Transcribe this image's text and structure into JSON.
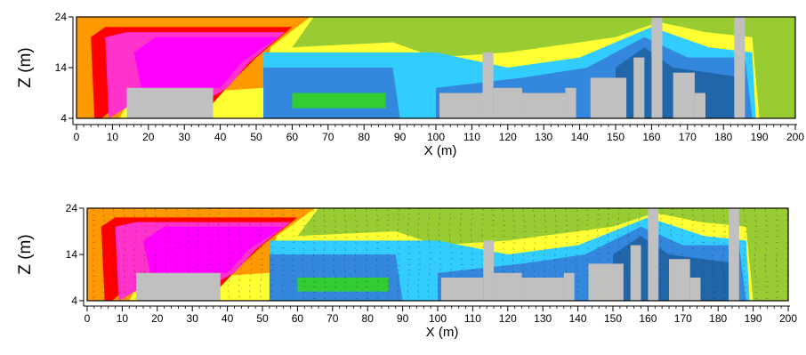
{
  "chart_data": [
    {
      "type": "heatmap",
      "title": "",
      "xlabel": "X (m)",
      "ylabel": "Z (m)",
      "xlim": [
        0,
        200
      ],
      "ylim": [
        4,
        24
      ],
      "x_ticks": [
        0,
        10,
        20,
        30,
        40,
        50,
        60,
        70,
        80,
        90,
        100,
        110,
        120,
        130,
        140,
        150,
        160,
        170,
        180,
        190,
        200
      ],
      "y_ticks": [
        4,
        14,
        24
      ],
      "grid": false,
      "legend": "none",
      "palette": [
        "#ff0000",
        "#ff33cc",
        "#ff00ff",
        "#ff9900",
        "#ffff33",
        "#99cc33",
        "#33cc33",
        "#33ccff",
        "#3388dd",
        "#2266aa",
        "#c0c0c0"
      ],
      "contour_bands": [
        {
          "color": "#ff9900",
          "polygon": [
            [
              0,
              24
            ],
            [
              65,
              24
            ],
            [
              54,
              18
            ],
            [
              52,
              10
            ],
            [
              30,
              9
            ],
            [
              14,
              7
            ],
            [
              12,
              4
            ],
            [
              0,
              4
            ]
          ]
        },
        {
          "color": "#ff0000",
          "polygon": [
            [
              8,
              22
            ],
            [
              60,
              22
            ],
            [
              50,
              16
            ],
            [
              43,
              11
            ],
            [
              38,
              7
            ],
            [
              12,
              7
            ],
            [
              7,
              4
            ],
            [
              5,
              4
            ],
            [
              4,
              20
            ]
          ]
        },
        {
          "color": "#ff33cc",
          "polygon": [
            [
              14,
              21
            ],
            [
              58,
              21
            ],
            [
              48,
              15
            ],
            [
              42,
              10
            ],
            [
              37,
              8
            ],
            [
              16,
              7
            ],
            [
              9,
              4
            ],
            [
              8,
              20
            ]
          ]
        },
        {
          "color": "#ff00ff",
          "polygon": [
            [
              22,
              20
            ],
            [
              56,
              20
            ],
            [
              46,
              15
            ],
            [
              40,
              10
            ],
            [
              18,
              10
            ],
            [
              16,
              17
            ]
          ]
        },
        {
          "color": "#99cc33",
          "polygon": [
            [
              66,
              24
            ],
            [
              200,
              24
            ],
            [
              200,
              4
            ],
            [
              190,
              4
            ],
            [
              188,
              20
            ],
            [
              175,
              21
            ],
            [
              162,
              23
            ],
            [
              150,
              20
            ],
            [
              120,
              17
            ],
            [
              100,
              16
            ],
            [
              88,
              19
            ],
            [
              60,
              18
            ]
          ]
        },
        {
          "color": "#33ccff",
          "polygon": [
            [
              52,
              17
            ],
            [
              100,
              17
            ],
            [
              120,
              14
            ],
            [
              140,
              16
            ],
            [
              160,
              22
            ],
            [
              176,
              18
            ],
            [
              188,
              17
            ],
            [
              189,
              4
            ],
            [
              52,
              4
            ]
          ]
        },
        {
          "color": "#3388dd",
          "polygon": [
            [
              52,
              14
            ],
            [
              88,
              14
            ],
            [
              90,
              4
            ],
            [
              52,
              4
            ]
          ]
        },
        {
          "color": "#3388dd",
          "polygon": [
            [
              100,
              10
            ],
            [
              124,
              12
            ],
            [
              142,
              14
            ],
            [
              158,
              20
            ],
            [
              170,
              16
            ],
            [
              186,
              16
            ],
            [
              188,
              4
            ],
            [
              100,
              4
            ]
          ]
        },
        {
          "color": "#2266aa",
          "polygon": [
            [
              150,
              14
            ],
            [
              158,
              18
            ],
            [
              166,
              14
            ],
            [
              186,
              12
            ],
            [
              186,
              4
            ],
            [
              150,
              4
            ]
          ]
        },
        {
          "color": "#33cc33",
          "polygon": [
            [
              60,
              6
            ],
            [
              86,
              6
            ],
            [
              86,
              9
            ],
            [
              60,
              9
            ]
          ]
        }
      ],
      "obstacles": [
        {
          "x": [
            14,
            38
          ],
          "z": [
            4,
            10
          ]
        },
        {
          "x": [
            101,
            113
          ],
          "z": [
            4,
            9
          ]
        },
        {
          "x": [
            113,
            116
          ],
          "z": [
            4,
            17
          ]
        },
        {
          "x": [
            116,
            124
          ],
          "z": [
            4,
            10
          ]
        },
        {
          "x": [
            124,
            136
          ],
          "z": [
            4,
            9
          ]
        },
        {
          "x": [
            136,
            139
          ],
          "z": [
            4,
            10
          ]
        },
        {
          "x": [
            143,
            153
          ],
          "z": [
            4,
            12
          ]
        },
        {
          "x": [
            155,
            158
          ],
          "z": [
            4,
            16
          ]
        },
        {
          "x": [
            160,
            163
          ],
          "z": [
            4,
            24
          ]
        },
        {
          "x": [
            166,
            172
          ],
          "z": [
            4,
            13
          ]
        },
        {
          "x": [
            172,
            175
          ],
          "z": [
            4,
            9
          ]
        },
        {
          "x": [
            183,
            186
          ],
          "z": [
            4,
            24
          ]
        }
      ]
    },
    {
      "type": "heatmap",
      "title": "",
      "xlabel": "X (m)",
      "ylabel": "Z (m)",
      "xlim": [
        0,
        200
      ],
      "ylim": [
        4,
        24
      ],
      "x_ticks": [
        0,
        10,
        20,
        30,
        40,
        50,
        60,
        70,
        80,
        90,
        100,
        110,
        120,
        130,
        140,
        150,
        160,
        170,
        180,
        190,
        200
      ],
      "y_ticks": [
        4,
        14,
        24
      ],
      "grid": false,
      "legend": "none",
      "overlay": "velocity-vectors",
      "same_field_as_panel": 1
    }
  ]
}
